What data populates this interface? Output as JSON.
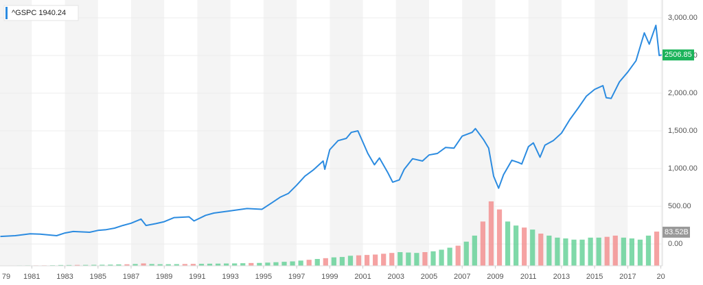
{
  "chart_data": {
    "type": "line",
    "legend": {
      "name": "^GSPC",
      "value": 1940.24
    },
    "xlim": [
      1979.08,
      2019.1
    ],
    "xticks": [
      {
        "value": 1979,
        "label": "79"
      },
      1981,
      1983,
      1985,
      1987,
      1989,
      1991,
      1993,
      1995,
      1997,
      1999,
      2001,
      2003,
      2005,
      2007,
      2009,
      2011,
      2013,
      2015,
      2017,
      {
        "value": 2019,
        "label": "20"
      }
    ],
    "ylim": [
      -290,
      3236
    ],
    "yticks": [
      {
        "value": 0,
        "label": "0.00"
      },
      {
        "value": 500,
        "label": "500.00"
      },
      {
        "value": 1000,
        "label": "1,000.00"
      },
      {
        "value": 1500,
        "label": "1,500.00"
      },
      {
        "value": 2000,
        "label": "2,000.00"
      },
      {
        "value": 2500,
        "label": "2,500.00"
      },
      {
        "value": 3000,
        "label": "3,000.00"
      }
    ],
    "y2lim": [
      0,
      660
    ],
    "grid": true,
    "last_price": 2506.85,
    "last_price_color": "#1bb35a",
    "last_volume": {
      "value": 83.52,
      "label": "83.52B"
    },
    "series": [
      {
        "name": "^GSPC",
        "color": "#2b8be0",
        "x": [
          1979.1,
          1980,
          1980.9,
          1981.5,
          1982.5,
          1983,
          1983.5,
          1984.5,
          1985,
          1985.5,
          1986,
          1986.5,
          1987,
          1987.6,
          1987.9,
          1988.5,
          1989,
          1989.6,
          1990.5,
          1990.8,
          1991.5,
          1992,
          1993,
          1994,
          1994.9,
          1995.5,
          1996,
          1996.5,
          1997,
          1997.5,
          1998,
          1998.6,
          1998.7,
          1999,
          1999.5,
          2000,
          2000.3,
          2000.7,
          2001,
          2001.3,
          2001.7,
          2002,
          2002.5,
          2002.8,
          2003.2,
          2003.5,
          2004,
          2004.6,
          2005,
          2005.5,
          2006,
          2006.5,
          2007,
          2007.6,
          2007.8,
          2008.3,
          2008.6,
          2008.9,
          2009.2,
          2009.5,
          2010,
          2010.4,
          2010.6,
          2011,
          2011.3,
          2011.7,
          2012,
          2012.5,
          2013,
          2013.5,
          2014,
          2014.5,
          2015,
          2015.5,
          2015.7,
          2016,
          2016.5,
          2017,
          2017.5,
          2018,
          2018.3,
          2018.7,
          2018.9,
          2019.05
        ],
        "values": [
          100,
          110,
          135,
          130,
          110,
          145,
          165,
          155,
          180,
          190,
          210,
          245,
          275,
          330,
          245,
          270,
          295,
          350,
          360,
          305,
          380,
          410,
          440,
          470,
          460,
          545,
          620,
          670,
          780,
          900,
          980,
          1100,
          990,
          1250,
          1370,
          1400,
          1480,
          1500,
          1350,
          1200,
          1050,
          1140,
          950,
          820,
          850,
          990,
          1130,
          1100,
          1180,
          1200,
          1280,
          1270,
          1430,
          1480,
          1530,
          1380,
          1270,
          900,
          740,
          920,
          1110,
          1080,
          1060,
          1290,
          1340,
          1150,
          1310,
          1370,
          1470,
          1650,
          1800,
          1960,
          2050,
          2100,
          1940,
          1930,
          2150,
          2280,
          2430,
          2800,
          2650,
          2900,
          2500,
          2506.85
        ]
      },
      {
        "name": "Volume",
        "axis": "y2",
        "x": [
          1979.25,
          1979.75,
          1980.25,
          1980.75,
          1981.25,
          1981.75,
          1982.25,
          1982.75,
          1983.25,
          1983.75,
          1984.25,
          1984.75,
          1985.25,
          1985.75,
          1986.25,
          1986.75,
          1987.25,
          1987.75,
          1988.25,
          1988.75,
          1989.25,
          1989.75,
          1990.25,
          1990.75,
          1991.25,
          1991.75,
          1992.25,
          1992.75,
          1993.25,
          1993.75,
          1994.25,
          1994.75,
          1995.25,
          1995.75,
          1996.25,
          1996.75,
          1997.25,
          1997.75,
          1998.25,
          1998.75,
          1999.25,
          1999.75,
          2000.25,
          2000.75,
          2001.25,
          2001.75,
          2002.25,
          2002.75,
          2003.25,
          2003.75,
          2004.25,
          2004.75,
          2005.25,
          2005.75,
          2006.25,
          2006.75,
          2007.25,
          2007.75,
          2008.25,
          2008.75,
          2009.25,
          2009.75,
          2010.25,
          2010.75,
          2011.25,
          2011.75,
          2012.25,
          2012.75,
          2013.25,
          2013.75,
          2014.25,
          2014.75,
          2015.25,
          2015.75,
          2016.25,
          2016.75,
          2017.25,
          2017.75,
          2018.25,
          2018.75
        ],
        "values": [
          0.8,
          0.9,
          1,
          1.1,
          1.1,
          1.2,
          1.5,
          2,
          2,
          2.2,
          2.3,
          2.5,
          2.7,
          3,
          3.5,
          3.8,
          4.5,
          6,
          4.5,
          4,
          4,
          4.2,
          4.5,
          4.8,
          5,
          5.3,
          5.5,
          5.8,
          6,
          6.5,
          7,
          7.2,
          8,
          9,
          10,
          11,
          13,
          15,
          17,
          19,
          21,
          22,
          25,
          26,
          27,
          28,
          30,
          32,
          34,
          33,
          32,
          34,
          36,
          40,
          45,
          50,
          60,
          75,
          110,
          160,
          140,
          110,
          100,
          95,
          90,
          80,
          75,
          70,
          68,
          65,
          65,
          70,
          70,
          72,
          75,
          70,
          68,
          65,
          75,
          85
        ],
        "colors": [
          "#5fcf94",
          "#f28b8b",
          "#5fcf94",
          "#5fcf94",
          "#f28b8b",
          "#f28b8b",
          "#5fcf94",
          "#5fcf94",
          "#5fcf94",
          "#f28b8b",
          "#5fcf94",
          "#5fcf94",
          "#5fcf94",
          "#5fcf94",
          "#5fcf94",
          "#f28b8b",
          "#5fcf94",
          "#f28b8b",
          "#5fcf94",
          "#5fcf94",
          "#5fcf94",
          "#5fcf94",
          "#f28b8b",
          "#f28b8b",
          "#5fcf94",
          "#5fcf94",
          "#5fcf94",
          "#5fcf94",
          "#5fcf94",
          "#5fcf94",
          "#f28b8b",
          "#5fcf94",
          "#5fcf94",
          "#5fcf94",
          "#5fcf94",
          "#5fcf94",
          "#5fcf94",
          "#f28b8b",
          "#5fcf94",
          "#f28b8b",
          "#5fcf94",
          "#5fcf94",
          "#5fcf94",
          "#f28b8b",
          "#f28b8b",
          "#f28b8b",
          "#f28b8b",
          "#f28b8b",
          "#5fcf94",
          "#5fcf94",
          "#5fcf94",
          "#f28b8b",
          "#5fcf94",
          "#5fcf94",
          "#5fcf94",
          "#f28b8b",
          "#5fcf94",
          "#5fcf94",
          "#f28b8b",
          "#f28b8b",
          "#f28b8b",
          "#5fcf94",
          "#5fcf94",
          "#f28b8b",
          "#5fcf94",
          "#f28b8b",
          "#5fcf94",
          "#5fcf94",
          "#5fcf94",
          "#5fcf94",
          "#5fcf94",
          "#5fcf94",
          "#5fcf94",
          "#f28b8b",
          "#f28b8b",
          "#5fcf94",
          "#5fcf94",
          "#5fcf94",
          "#5fcf94",
          "#f28b8b"
        ]
      }
    ]
  }
}
